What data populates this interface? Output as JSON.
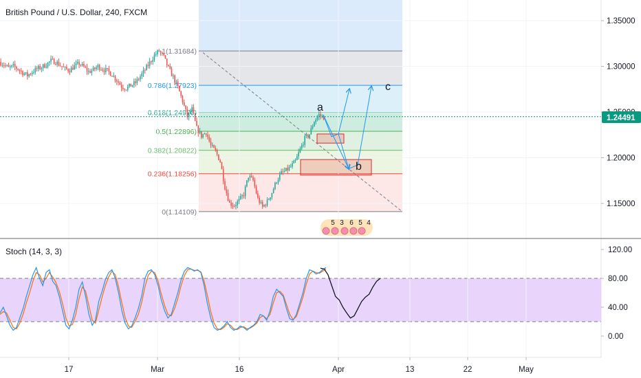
{
  "header": {
    "title": "British Pound / U.S. Dollar, 240, FXCM"
  },
  "price_axis": {
    "ticks": [
      "1.35000",
      "1.30000",
      "1.25000",
      "1.20000",
      "1.15000"
    ],
    "tick_values": [
      1.35,
      1.3,
      1.25,
      1.2,
      1.15
    ],
    "current_price_label": "1.24491",
    "current_price": 1.24491
  },
  "stoch_axis": {
    "ticks": [
      "120.00",
      "80.00",
      "40.00",
      "0.00"
    ],
    "tick_values": [
      120,
      80,
      40,
      0
    ]
  },
  "time_axis": {
    "labels": [
      "17",
      "Mar",
      "16",
      "Apr",
      "13",
      "22",
      "May"
    ]
  },
  "fib": {
    "levels": [
      {
        "label": "1(1.31684)",
        "ratio": 1,
        "price": 1.31684,
        "color": "#787b86"
      },
      {
        "label": "0.786(1.27923)",
        "ratio": 0.786,
        "price": 1.27923,
        "color": "#2196f3"
      },
      {
        "label": "0.618(1.24970)",
        "ratio": 0.618,
        "price": 1.2497,
        "color": "#089981"
      },
      {
        "label": "0.5(1.22896)",
        "ratio": 0.5,
        "price": 1.22896,
        "color": "#4caf50"
      },
      {
        "label": "0.382(1.20822)",
        "ratio": 0.382,
        "price": 1.20822,
        "color": "#66bb6a"
      },
      {
        "label": "0.236(1.18256)",
        "ratio": 0.236,
        "price": 1.18256,
        "color": "#f44336"
      },
      {
        "label": "0(1.14109)",
        "ratio": 0,
        "price": 1.14109,
        "color": "#787b86"
      }
    ]
  },
  "wave_labels": {
    "a": "a",
    "b": "b",
    "c": "c"
  },
  "event_markers": [
    "5",
    "3",
    "6",
    "5",
    "4"
  ],
  "indicator": {
    "name": "Stoch (14, 3, 3)",
    "upper_band": 80,
    "lower_band": 20
  },
  "colors": {
    "candle_up": "#26a69a",
    "candle_down": "#ef5350",
    "stoch_k": "#2196f3",
    "stoch_d": "#ff6d00",
    "stoch_band_fill": "#e1c7fa",
    "projection_arrows": "#2196f3",
    "price_line": "#089981"
  },
  "chart_data": [
    {
      "type": "candlestick",
      "title": "British Pound / U.S. Dollar, 240, FXCM",
      "y_axis_label": "",
      "ylim": [
        1.11,
        1.37
      ],
      "x_labels": [
        "17",
        "Mar",
        "16",
        "Apr",
        "13",
        "22",
        "May"
      ],
      "close_path": [
        1.305,
        1.302,
        1.298,
        1.3,
        1.297,
        1.293,
        1.29,
        1.294,
        1.297,
        1.299,
        1.302,
        1.306,
        1.305,
        1.301,
        1.297,
        1.296,
        1.3,
        1.303,
        1.299,
        1.294,
        1.296,
        1.3,
        1.297,
        1.295,
        1.291,
        1.285,
        1.278,
        1.276,
        1.279,
        1.282,
        1.289,
        1.296,
        1.304,
        1.312,
        1.3168,
        1.31,
        1.298,
        1.288,
        1.277,
        1.262,
        1.245,
        1.253,
        1.232,
        1.224,
        1.228,
        1.213,
        1.207,
        1.196,
        1.168,
        1.15,
        1.148,
        1.153,
        1.16,
        1.18,
        1.175,
        1.155,
        1.146,
        1.152,
        1.162,
        1.175,
        1.183,
        1.186,
        1.19,
        1.196,
        1.209,
        1.221,
        1.226,
        1.24,
        1.247,
        1.244
      ],
      "last_price": 1.24491
    },
    {
      "type": "line",
      "title": "Stoch (14, 3, 3)",
      "ylim": [
        -20,
        130
      ],
      "bands": [
        20,
        80
      ],
      "series": [
        {
          "values": [
            32,
            40,
            28,
            15,
            8,
            12,
            25,
            38,
            55,
            70,
            85,
            95,
            80,
            70,
            88,
            92,
            76,
            70,
            55,
            35,
            15,
            10,
            22,
            40,
            65,
            75,
            55,
            30,
            15,
            22,
            48,
            62,
            78,
            88,
            92,
            80,
            60,
            35,
            18,
            10,
            14,
            25,
            38,
            55,
            80,
            90,
            92,
            85,
            70,
            50,
            35,
            25,
            30,
            45,
            60,
            78,
            90,
            95,
            93,
            90,
            92,
            88,
            70,
            45,
            25,
            12,
            8,
            10,
            14,
            20,
            12,
            8,
            10,
            14,
            12,
            8,
            12,
            15,
            20,
            30,
            28,
            22,
            35,
            55,
            65,
            60,
            55,
            38,
            24,
            22,
            30,
            45,
            60,
            80,
            92,
            90,
            86,
            88,
            92,
            95
          ]
        },
        {
          "values": [
            30,
            34,
            32,
            22,
            12,
            10,
            18,
            30,
            46,
            60,
            76,
            88,
            85,
            75,
            80,
            88,
            82,
            74,
            62,
            45,
            25,
            14,
            16,
            30,
            52,
            68,
            62,
            42,
            22,
            18,
            36,
            54,
            70,
            82,
            90,
            85,
            68,
            46,
            26,
            14,
            12,
            20,
            30,
            46,
            68,
            84,
            90,
            88,
            76,
            58,
            42,
            30,
            28,
            38,
            52,
            70,
            84,
            92,
            93,
            91,
            91,
            89,
            76,
            56,
            34,
            18,
            10,
            9,
            12,
            17,
            15,
            10,
            9,
            12,
            13,
            10,
            11,
            14,
            18,
            26,
            28,
            24,
            30,
            46,
            60,
            62,
            57,
            44,
            30,
            23,
            27,
            40,
            54,
            72,
            86,
            90,
            88,
            87,
            90,
            93
          ]
        },
        {
          "values": [
            94,
            93,
            85,
            70,
            55,
            50,
            40,
            32,
            25,
            28,
            38,
            48,
            54,
            58,
            68,
            76,
            80
          ]
        }
      ]
    }
  ]
}
